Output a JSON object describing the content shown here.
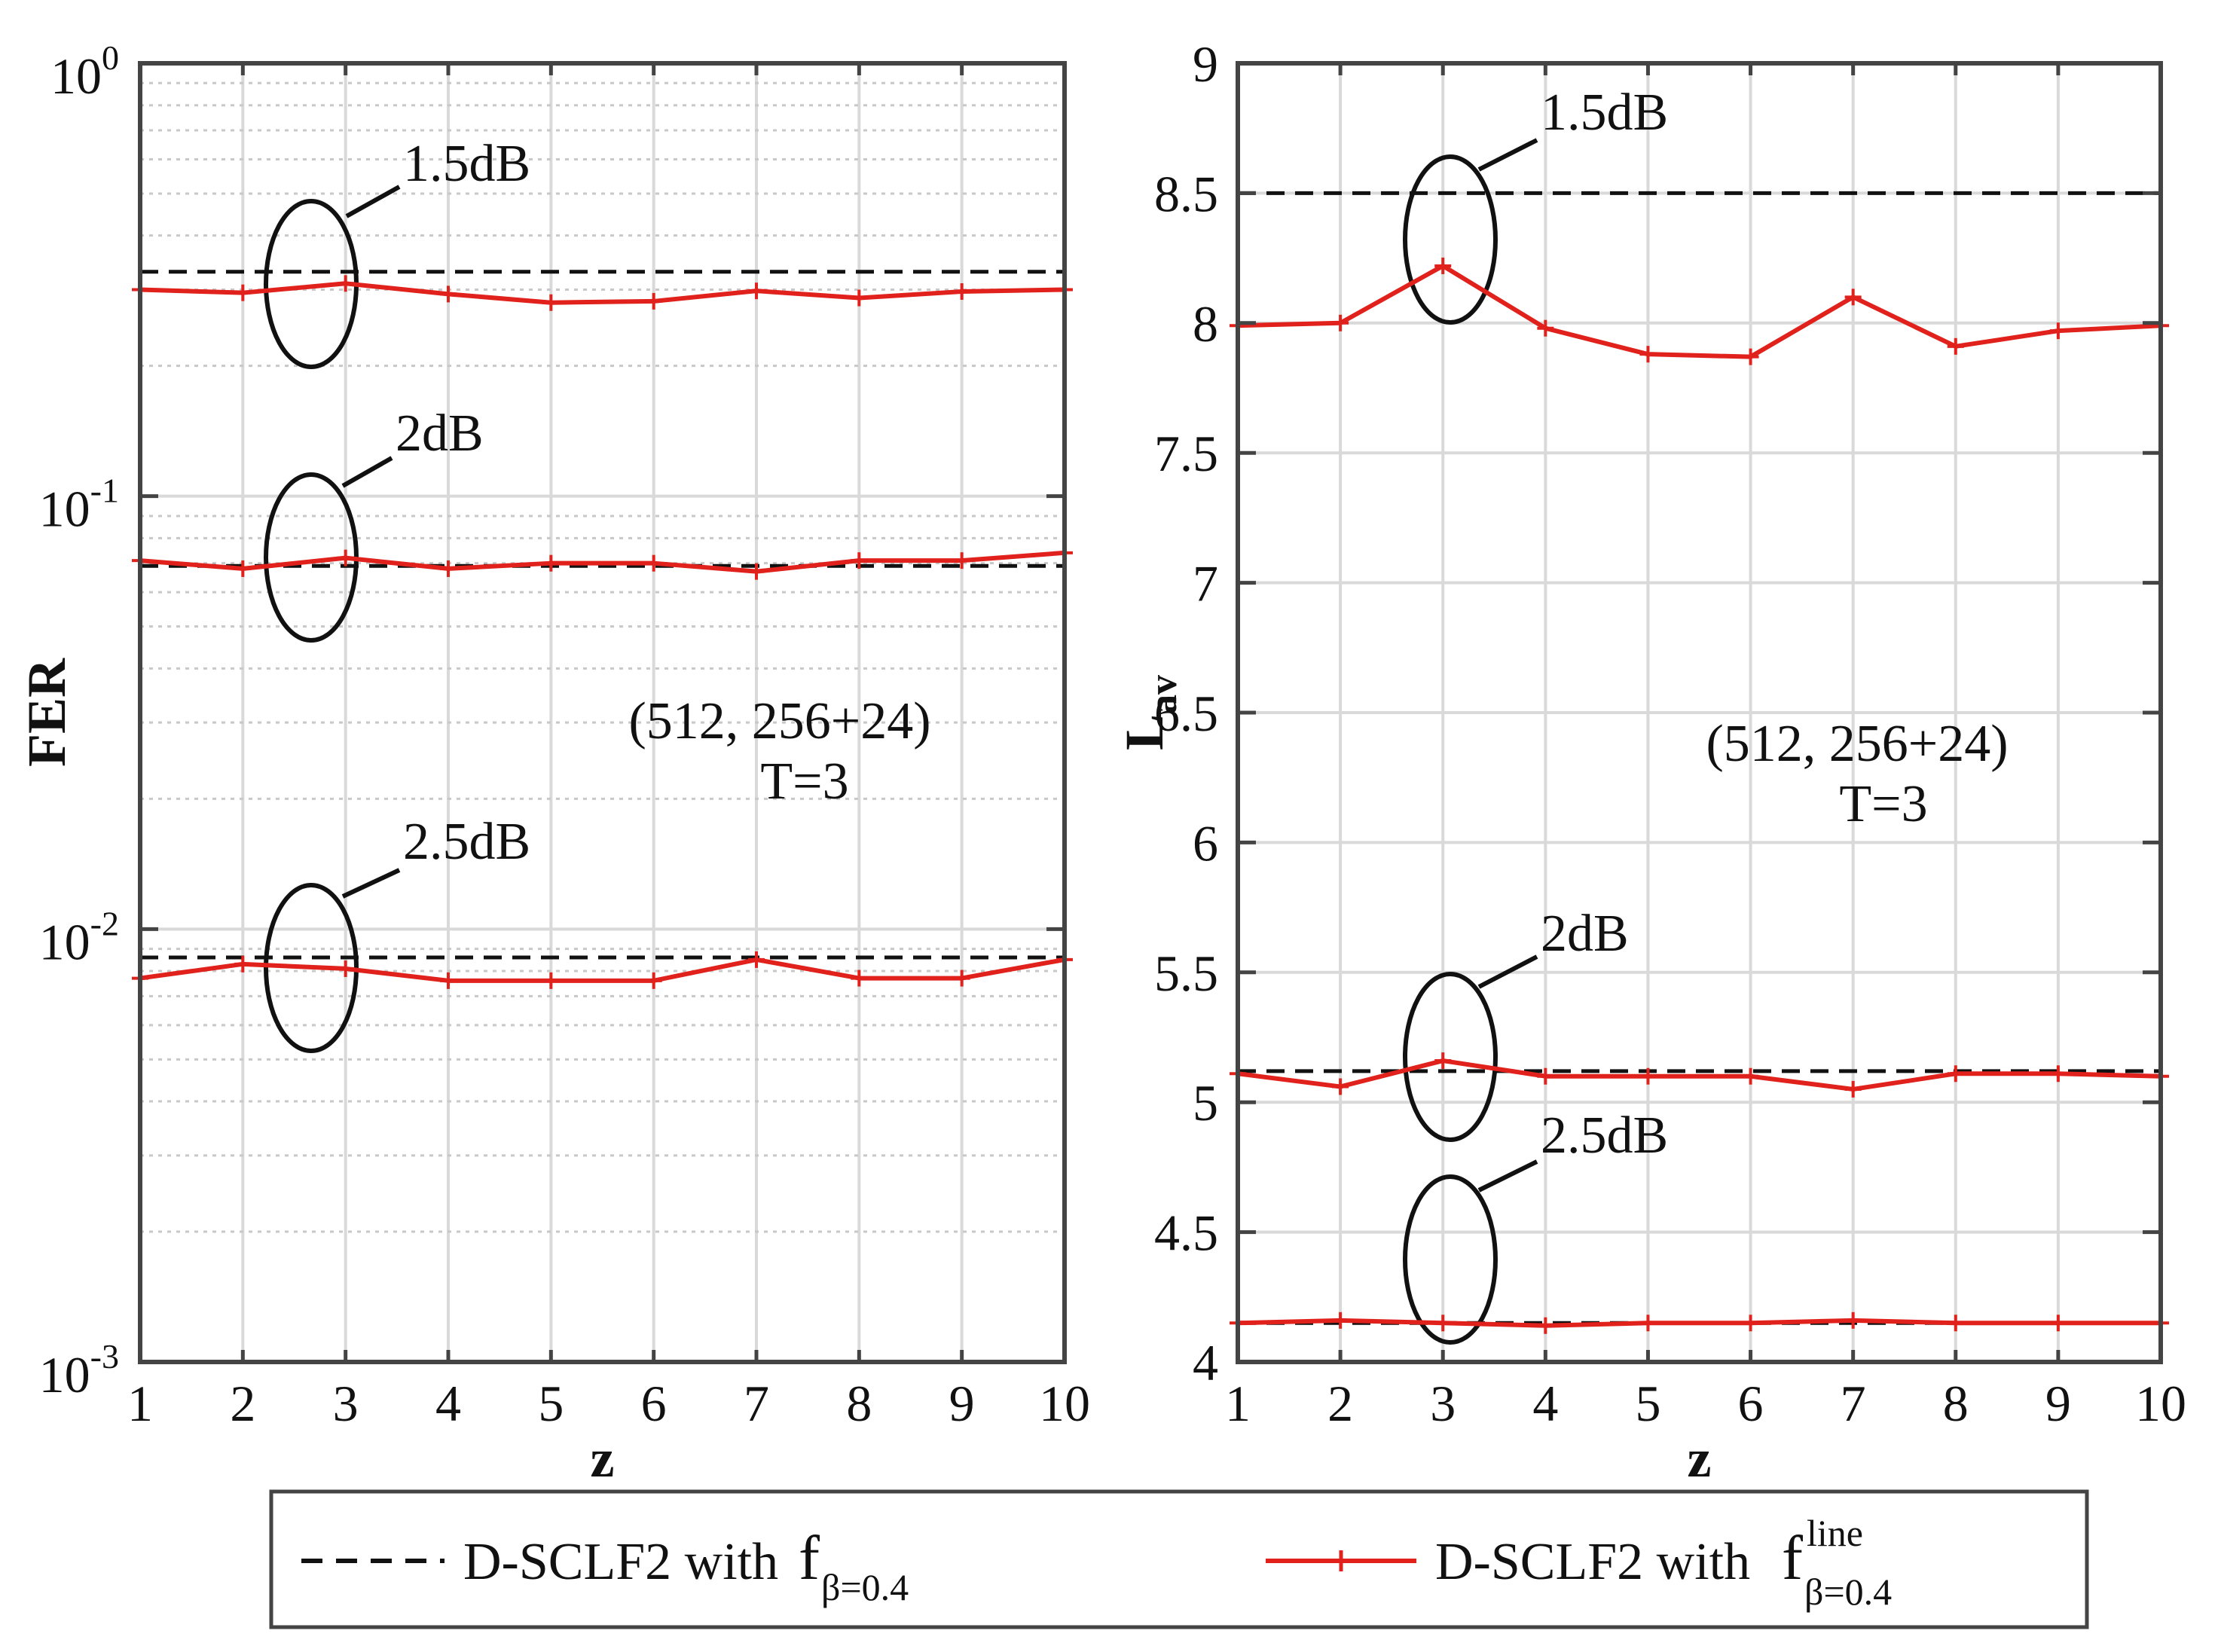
{
  "chart_data": [
    {
      "type": "line",
      "yscale": "log",
      "xlabel": "z",
      "ylabel": "FER",
      "xlim": [
        1,
        10
      ],
      "ylim": [
        0.001,
        1
      ],
      "xticks": [
        "1",
        "2",
        "3",
        "4",
        "5",
        "6",
        "7",
        "8",
        "9",
        "10"
      ],
      "yticks": [
        {
          "base": "10",
          "exp": "0"
        },
        {
          "base": "10",
          "exp": "-1"
        },
        {
          "base": "10",
          "exp": "-2"
        },
        {
          "base": "10",
          "exp": "-3"
        }
      ],
      "grid": true,
      "code_label": "(512, 256+24)",
      "t_label": "T=3",
      "x": [
        1,
        2,
        3,
        4,
        5,
        6,
        7,
        8,
        9,
        10
      ],
      "groups": [
        {
          "snr": "1.5dB",
          "baseline": 0.33,
          "line": [
            0.3,
            0.295,
            0.31,
            0.293,
            0.28,
            0.282,
            0.298,
            0.287,
            0.297,
            0.3
          ]
        },
        {
          "snr": "2dB",
          "baseline": 0.069,
          "line": [
            0.071,
            0.068,
            0.072,
            0.068,
            0.07,
            0.07,
            0.067,
            0.071,
            0.071,
            0.074
          ]
        },
        {
          "snr": "2.5dB",
          "baseline": 0.0086,
          "line": [
            0.0077,
            0.0083,
            0.0081,
            0.0076,
            0.0076,
            0.0076,
            0.0085,
            0.0077,
            0.0077,
            0.0085
          ]
        }
      ]
    },
    {
      "type": "line",
      "yscale": "linear",
      "xlabel": "z",
      "ylabel": "L",
      "ylabel_sub": "av",
      "xlim": [
        1,
        10
      ],
      "ylim": [
        4,
        9
      ],
      "xticks": [
        "1",
        "2",
        "3",
        "4",
        "5",
        "6",
        "7",
        "8",
        "9",
        "10"
      ],
      "yticks": [
        "9",
        "8.5",
        "8",
        "7.5",
        "7",
        "6.5",
        "6",
        "5.5",
        "5",
        "4.5",
        "4"
      ],
      "grid": true,
      "code_label": "(512, 256+24)",
      "t_label": "T=3",
      "x": [
        1,
        2,
        3,
        4,
        5,
        6,
        7,
        8,
        9,
        10
      ],
      "groups": [
        {
          "snr": "1.5dB",
          "baseline": 8.5,
          "line": [
            7.99,
            8.0,
            8.22,
            7.98,
            7.88,
            7.87,
            8.1,
            7.91,
            7.97,
            7.99
          ]
        },
        {
          "snr": "2dB",
          "baseline": 5.12,
          "line": [
            5.11,
            5.06,
            5.16,
            5.1,
            5.1,
            5.1,
            5.05,
            5.11,
            5.11,
            5.1
          ]
        },
        {
          "snr": "2.5dB",
          "baseline": 4.15,
          "line": [
            4.15,
            4.16,
            4.15,
            4.14,
            4.15,
            4.15,
            4.16,
            4.15,
            4.15,
            4.15
          ]
        }
      ]
    }
  ],
  "legend": {
    "dashed_label": "D-SCLF2 with",
    "dashed_f": "f",
    "dashed_sub": "β=0.4",
    "solid_label": "D-SCLF2 with",
    "solid_f": "f",
    "solid_sub": "β=0.4",
    "solid_sup": "line"
  },
  "colors": {
    "baseline": "#111111",
    "line": "#e0211c",
    "grid": "#d9d9d9",
    "axis": "#444444"
  }
}
